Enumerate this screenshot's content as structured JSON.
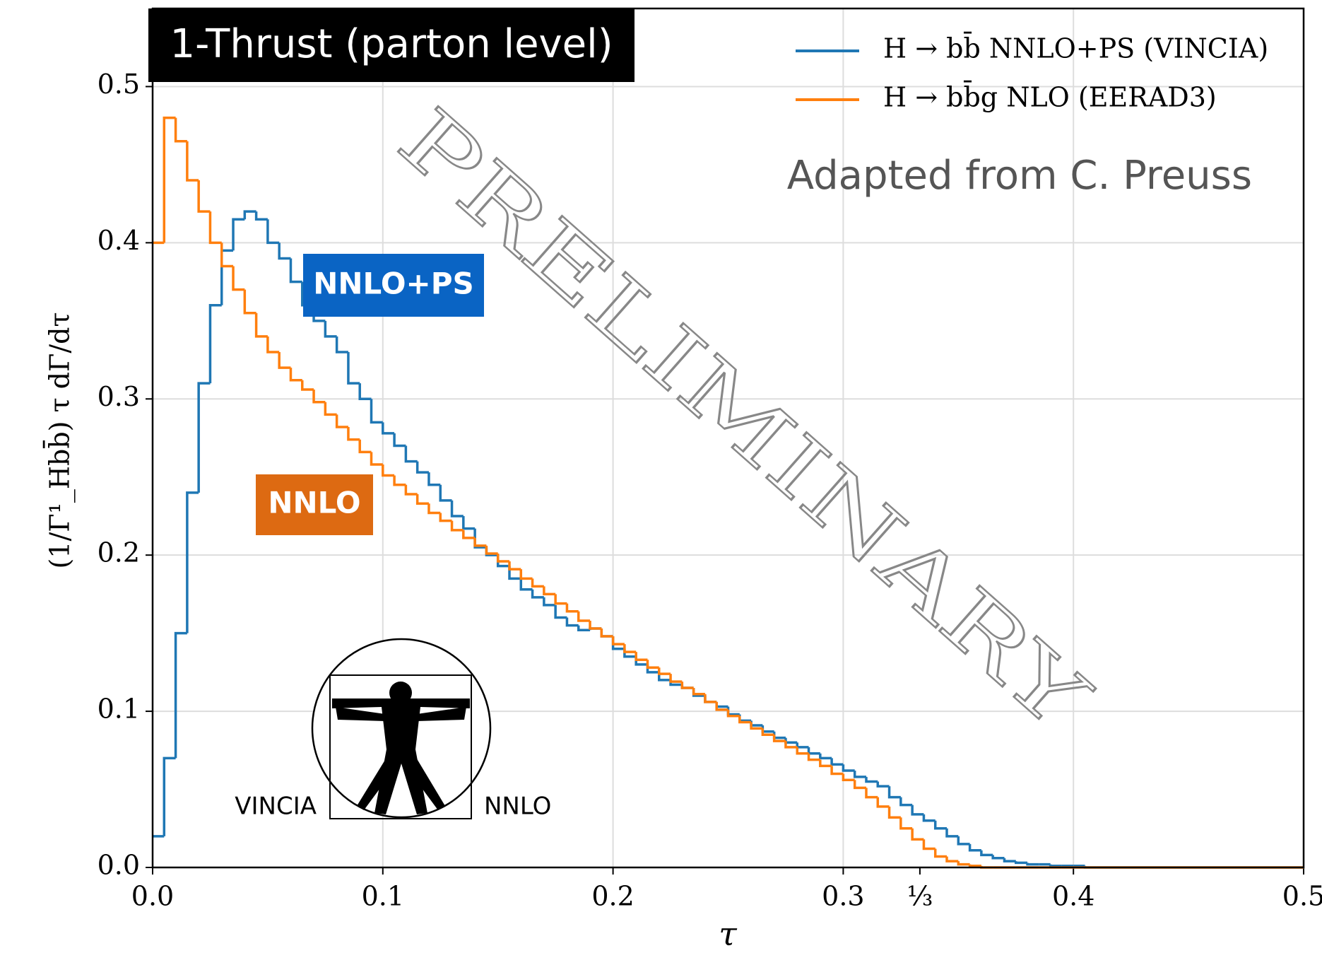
{
  "chart_data": {
    "type": "histogram",
    "title": "1-Thrust (parton level)",
    "xlabel": "τ",
    "ylabel": "(1/Γ¹_Hbb̄) τ dΓ/dτ",
    "annotations": {
      "credit": "Adapted from C. Preuss",
      "watermark": "PRELIMINARY",
      "ps_tag": "NNLO+PS",
      "nnlo_tag": "NNLO",
      "logo_left": "VINCIA",
      "logo_right": "NNLO"
    },
    "legend": "upper right",
    "grid": true,
    "xlim": [
      0,
      0.5
    ],
    "ylim": [
      0,
      0.55
    ],
    "xticks": [
      {
        "value": 0,
        "label": "0.0"
      },
      0.1,
      0.2,
      0.3,
      {
        "value": 0.3333,
        "label": "⅓"
      },
      0.4,
      0.5
    ],
    "yticks": [
      {
        "value": 0,
        "label": "0.0"
      },
      0.1,
      0.2,
      0.3,
      0.4,
      0.5
    ],
    "bins": [
      0,
      0.005,
      0.01,
      0.015,
      0.02,
      0.025,
      0.03,
      0.035,
      0.04,
      0.045,
      0.05,
      0.055,
      0.06,
      0.065,
      0.07,
      0.075,
      0.08,
      0.085,
      0.09,
      0.095,
      0.1,
      0.105,
      0.11,
      0.115,
      0.12,
      0.125,
      0.13,
      0.135,
      0.14,
      0.145,
      0.15,
      0.155,
      0.16,
      0.165,
      0.17,
      0.175,
      0.18,
      0.185,
      0.19,
      0.195,
      0.2,
      0.205,
      0.21,
      0.215,
      0.22,
      0.225,
      0.23,
      0.235,
      0.24,
      0.245,
      0.25,
      0.255,
      0.26,
      0.265,
      0.27,
      0.275,
      0.28,
      0.285,
      0.29,
      0.295,
      0.3,
      0.305,
      0.31,
      0.315,
      0.32,
      0.325,
      0.33,
      0.335,
      0.34,
      0.345,
      0.35,
      0.355,
      0.36,
      0.365,
      0.37,
      0.375,
      0.38,
      0.385,
      0.39,
      0.395,
      0.4,
      0.405,
      0.41,
      0.415,
      0.42,
      0.425,
      0.43,
      0.435,
      0.44,
      0.445,
      0.45,
      0.455,
      0.46,
      0.465,
      0.47,
      0.475,
      0.48,
      0.485,
      0.49,
      0.495,
      0.5
    ],
    "series": [
      {
        "name": "H → bb̄ NNLO+PS (VINCIA)",
        "color": "#1f77b4",
        "values": [
          0.02,
          0.07,
          0.15,
          0.24,
          0.31,
          0.36,
          0.395,
          0.415,
          0.42,
          0.415,
          0.4,
          0.39,
          0.375,
          0.36,
          0.35,
          0.34,
          0.33,
          0.31,
          0.3,
          0.285,
          0.278,
          0.27,
          0.26,
          0.253,
          0.245,
          0.235,
          0.225,
          0.217,
          0.205,
          0.2,
          0.193,
          0.185,
          0.178,
          0.173,
          0.168,
          0.16,
          0.155,
          0.152,
          0.153,
          0.148,
          0.14,
          0.135,
          0.13,
          0.125,
          0.12,
          0.117,
          0.115,
          0.11,
          0.106,
          0.103,
          0.098,
          0.094,
          0.091,
          0.087,
          0.083,
          0.08,
          0.077,
          0.073,
          0.07,
          0.066,
          0.062,
          0.058,
          0.055,
          0.052,
          0.045,
          0.04,
          0.034,
          0.03,
          0.025,
          0.02,
          0.015,
          0.011,
          0.008,
          0.006,
          0.004,
          0.003,
          0.002,
          0.002,
          0.001,
          0.001,
          0.001,
          0,
          0,
          0,
          0,
          0,
          0,
          0,
          0,
          0,
          0,
          0,
          0,
          0,
          0,
          0,
          0,
          0,
          0,
          0
        ]
      },
      {
        "name": "H → bb̄g NLO (EERAD3)",
        "color": "#ff7f0e",
        "values": [
          0.4,
          0.48,
          0.465,
          0.44,
          0.42,
          0.4,
          0.385,
          0.37,
          0.355,
          0.34,
          0.33,
          0.32,
          0.312,
          0.306,
          0.298,
          0.29,
          0.282,
          0.274,
          0.266,
          0.258,
          0.251,
          0.245,
          0.239,
          0.233,
          0.227,
          0.222,
          0.216,
          0.211,
          0.206,
          0.201,
          0.196,
          0.191,
          0.185,
          0.18,
          0.175,
          0.169,
          0.164,
          0.158,
          0.153,
          0.148,
          0.143,
          0.138,
          0.133,
          0.128,
          0.124,
          0.119,
          0.115,
          0.111,
          0.106,
          0.101,
          0.097,
          0.093,
          0.089,
          0.085,
          0.081,
          0.077,
          0.073,
          0.069,
          0.065,
          0.06,
          0.056,
          0.051,
          0.045,
          0.039,
          0.032,
          0.025,
          0.018,
          0.012,
          0.007,
          0.004,
          0.002,
          0.001,
          0,
          0,
          0,
          0,
          0,
          0,
          0,
          0,
          0,
          0,
          0,
          0,
          0,
          0,
          0,
          0,
          0,
          0,
          0,
          0,
          0,
          0,
          0,
          0,
          0,
          0,
          0,
          0
        ]
      }
    ]
  }
}
